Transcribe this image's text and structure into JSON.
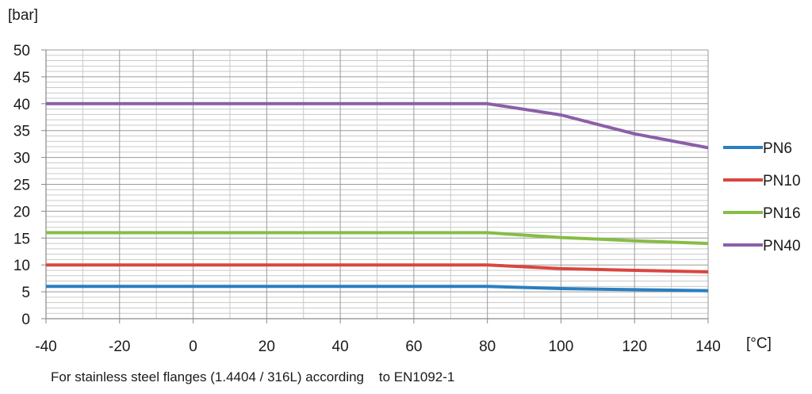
{
  "chart_data": {
    "type": "line",
    "title": "",
    "ylabel": "[bar]",
    "xlabel": "[°C]",
    "caption": "For stainless steel flanges (1.4404 / 316L) according    to EN1092-1",
    "xlim": [
      -40,
      140
    ],
    "ylim": [
      0,
      50
    ],
    "xticks": [
      -40,
      -20,
      0,
      20,
      40,
      60,
      80,
      100,
      120,
      140
    ],
    "yticks": [
      0,
      5,
      10,
      15,
      20,
      25,
      30,
      35,
      40,
      45,
      50
    ],
    "grid": true,
    "legend": "right",
    "x": [
      -40,
      80,
      100,
      120,
      140
    ],
    "series": [
      {
        "name": "PN6",
        "color": "#2a7fc1",
        "values": [
          6,
          6,
          5.6,
          5.4,
          5.2
        ]
      },
      {
        "name": "PN10",
        "color": "#d9463f",
        "values": [
          10,
          10,
          9.3,
          9.0,
          8.7
        ]
      },
      {
        "name": "PN16",
        "color": "#86bd45",
        "values": [
          16,
          16,
          15.1,
          14.5,
          14.0
        ]
      },
      {
        "name": "PN40",
        "color": "#8b5fa8",
        "values": [
          40,
          40,
          37.9,
          34.4,
          31.8
        ]
      }
    ]
  }
}
